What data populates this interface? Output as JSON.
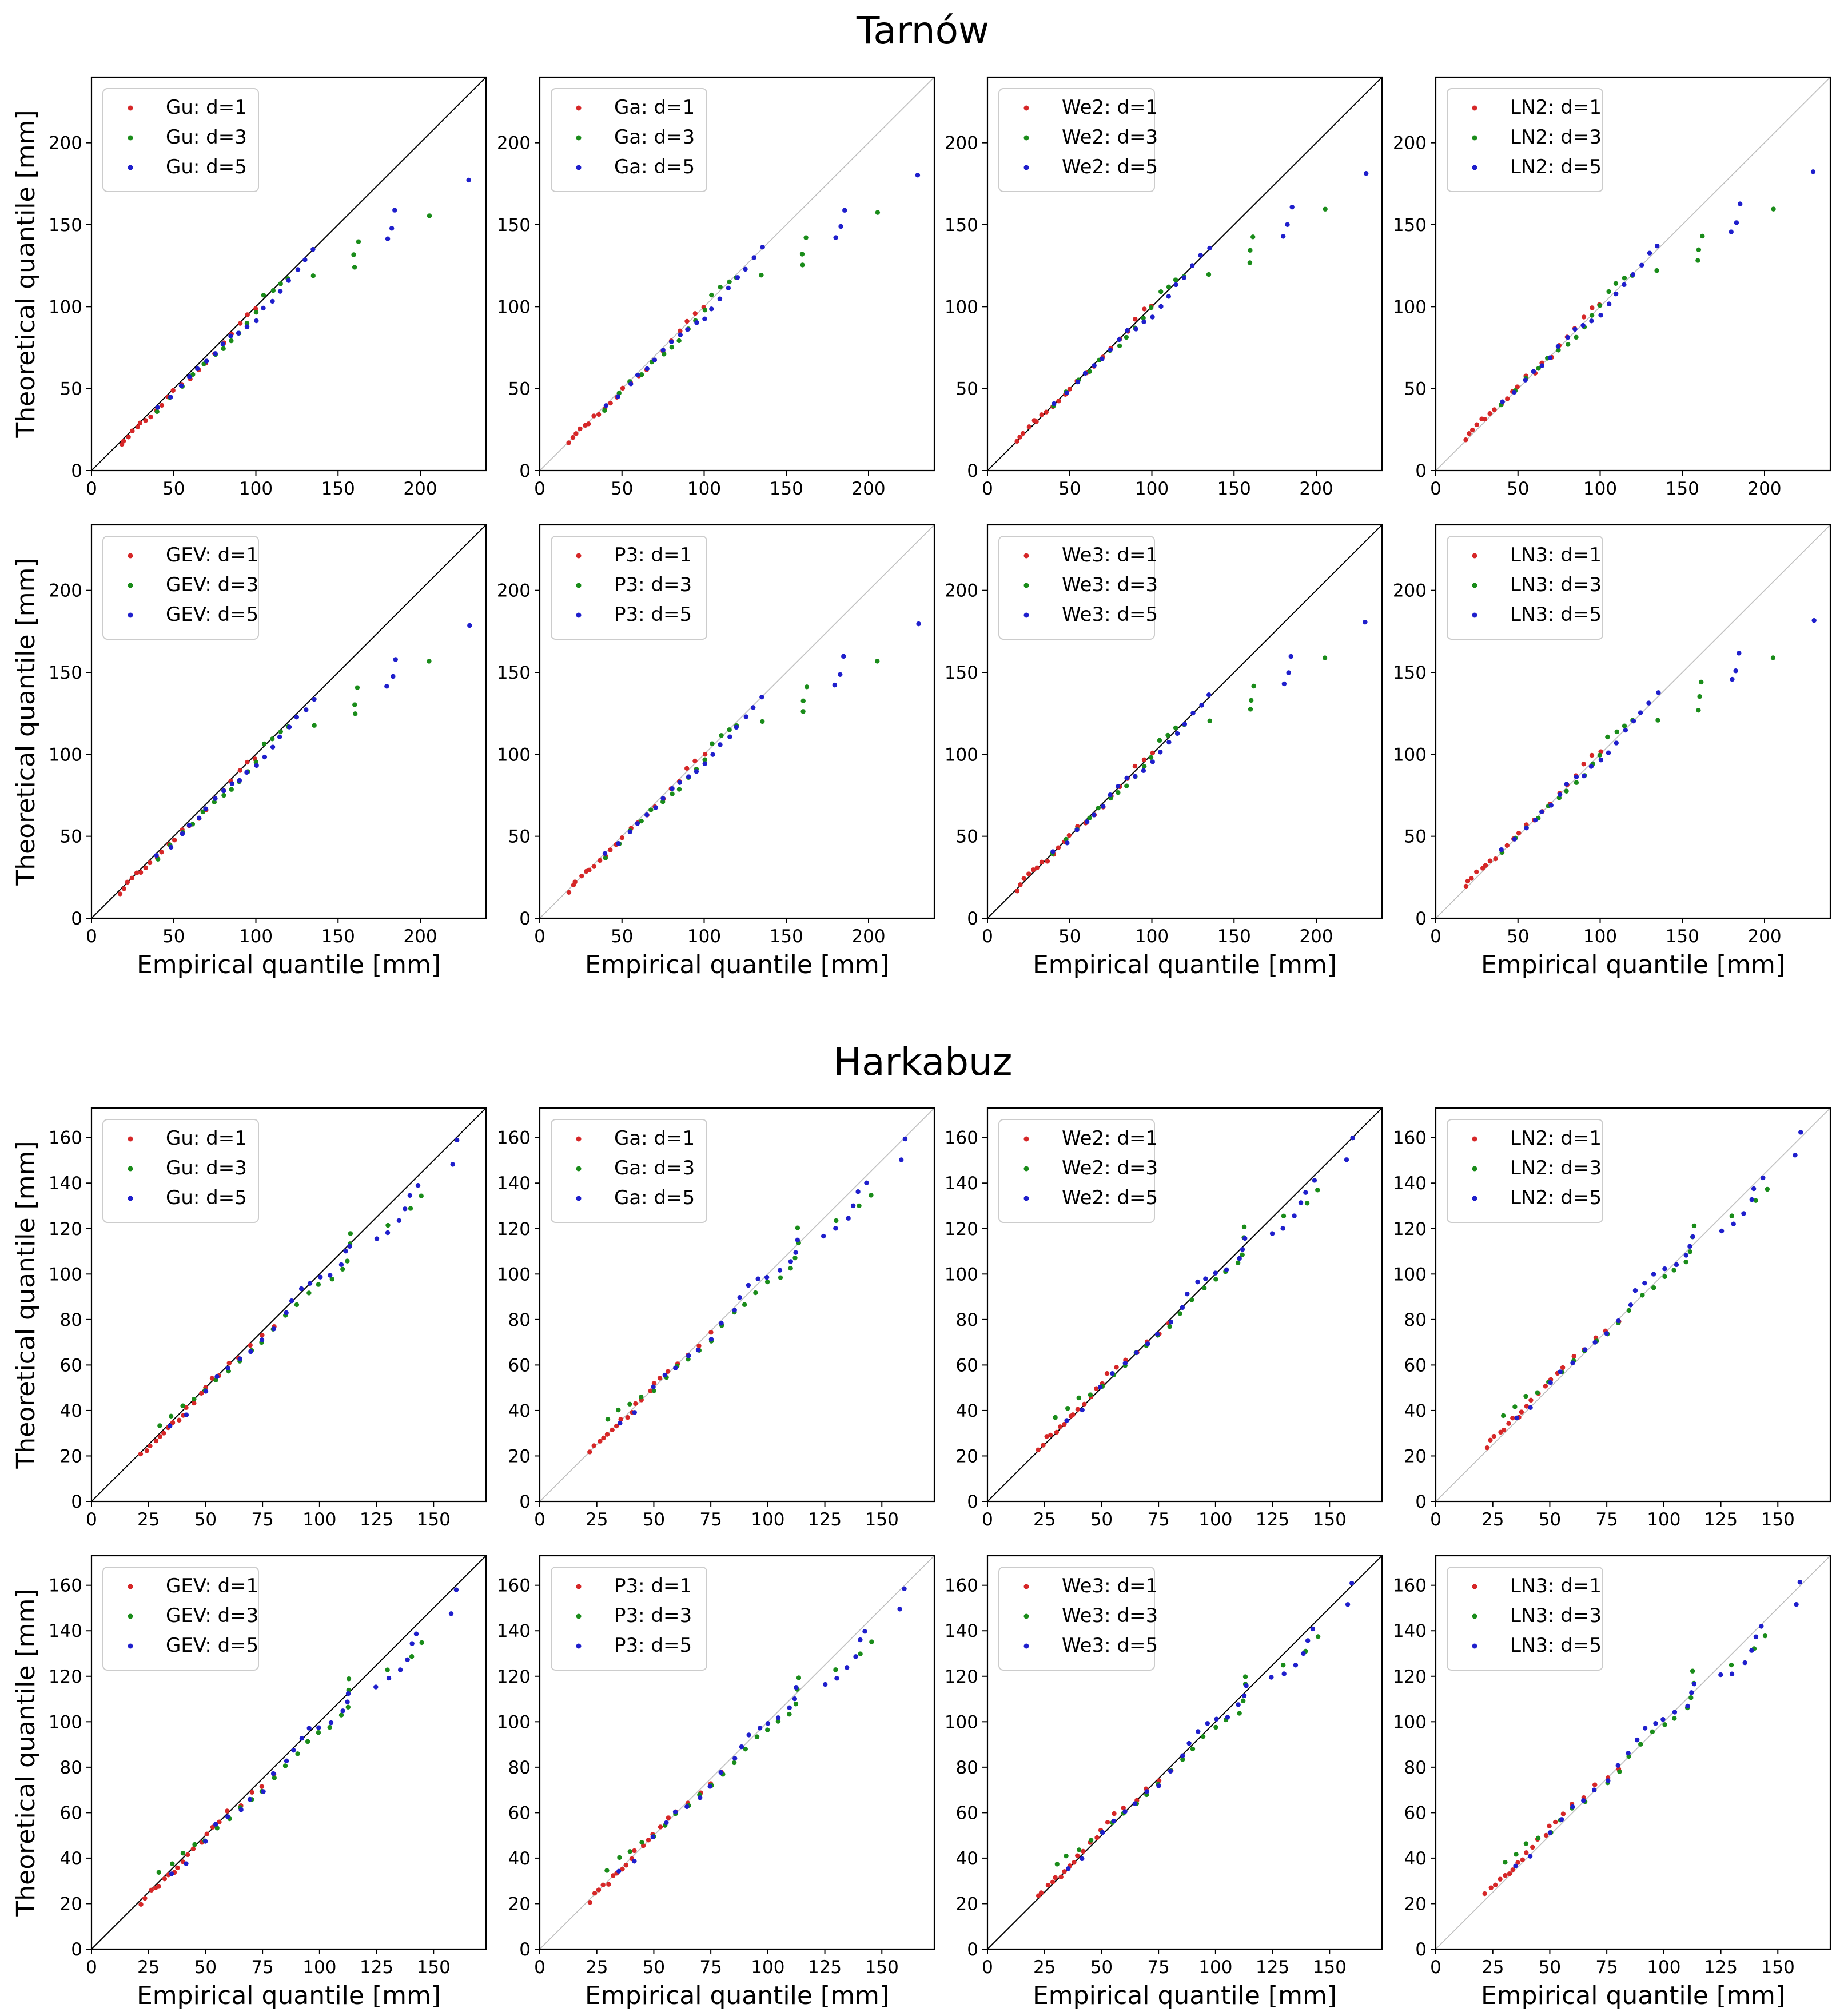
{
  "figure": {
    "xlabel": "Empirical quantile [mm]",
    "ylabel": "Theoretical quantile [mm]",
    "colors": {
      "d1": "#d62728",
      "d3": "#1a8c1a",
      "d5": "#1f1fcc"
    }
  },
  "sections": [
    {
      "title": "Tarnów",
      "xlim": [
        0,
        240
      ],
      "ylim": [
        0,
        240
      ],
      "xticks": [
        0,
        50,
        100,
        150,
        200
      ],
      "yticks": [
        0,
        50,
        100,
        150,
        200
      ],
      "chart_data": [
        {
          "type": "scatter",
          "title": "Gu",
          "legend": [
            "Gu: d=1",
            "Gu: d=3",
            "Gu: d=5"
          ],
          "diagonal": "dark"
        },
        {
          "type": "scatter",
          "title": "Ga",
          "legend": [
            "Ga: d=1",
            "Ga: d=3",
            "Ga: d=5"
          ],
          "diagonal": "light"
        },
        {
          "type": "scatter",
          "title": "We2",
          "legend": [
            "We2: d=1",
            "We2: d=3",
            "We2: d=5"
          ],
          "diagonal": "dark"
        },
        {
          "type": "scatter",
          "title": "LN2",
          "legend": [
            "LN2: d=1",
            "LN2: d=3",
            "LN2: d=5"
          ],
          "diagonal": "light"
        },
        {
          "type": "scatter",
          "title": "GEV",
          "legend": [
            "GEV: d=1",
            "GEV: d=3",
            "GEV: d=5"
          ],
          "diagonal": "dark"
        },
        {
          "type": "scatter",
          "title": "P3",
          "legend": [
            "P3: d=1",
            "P3: d=3",
            "P3: d=5"
          ],
          "diagonal": "light"
        },
        {
          "type": "scatter",
          "title": "We3",
          "legend": [
            "We3: d=1",
            "We3: d=3",
            "We3: d=5"
          ],
          "diagonal": "dark"
        },
        {
          "type": "scatter",
          "title": "LN3",
          "legend": [
            "LN3: d=1",
            "LN3: d=3",
            "LN3: d=5"
          ],
          "diagonal": "light"
        }
      ],
      "series_points": {
        "d1": [
          [
            18,
            17
          ],
          [
            20,
            20
          ],
          [
            22,
            23
          ],
          [
            25,
            26
          ],
          [
            28,
            29
          ],
          [
            30,
            30
          ],
          [
            33,
            33
          ],
          [
            36,
            35
          ],
          [
            40,
            38
          ],
          [
            43,
            42
          ],
          [
            47,
            46
          ],
          [
            50,
            50
          ],
          [
            55,
            55
          ],
          [
            60,
            58
          ],
          [
            65,
            63
          ],
          [
            70,
            68
          ],
          [
            75,
            74
          ],
          [
            80,
            80
          ],
          [
            85,
            85
          ],
          [
            90,
            92
          ],
          [
            95,
            97
          ],
          [
            100,
            100
          ]
        ],
        "d3": [
          [
            40,
            38
          ],
          [
            48,
            47
          ],
          [
            55,
            54
          ],
          [
            62,
            60
          ],
          [
            68,
            66
          ],
          [
            75,
            72
          ],
          [
            80,
            76
          ],
          [
            85,
            80
          ],
          [
            90,
            86
          ],
          [
            95,
            92
          ],
          [
            100,
            98
          ],
          [
            105,
            108
          ],
          [
            110,
            112
          ],
          [
            115,
            116
          ],
          [
            120,
            118
          ],
          [
            135,
            120
          ],
          [
            160,
            126
          ],
          [
            160,
            133
          ],
          [
            162,
            142
          ],
          [
            205,
            158
          ]
        ],
        "d5": [
          [
            40,
            40
          ],
          [
            48,
            46
          ],
          [
            55,
            53
          ],
          [
            60,
            58
          ],
          [
            65,
            63
          ],
          [
            70,
            68
          ],
          [
            75,
            74
          ],
          [
            80,
            80
          ],
          [
            85,
            84
          ],
          [
            90,
            86
          ],
          [
            95,
            90
          ],
          [
            100,
            94
          ],
          [
            105,
            100
          ],
          [
            110,
            106
          ],
          [
            115,
            112
          ],
          [
            120,
            118
          ],
          [
            125,
            124
          ],
          [
            130,
            130
          ],
          [
            135,
            136
          ],
          [
            180,
            143
          ],
          [
            183,
            150
          ],
          [
            185,
            160
          ],
          [
            230,
            180
          ]
        ]
      }
    },
    {
      "title": "Harkabuz",
      "xlim": [
        0,
        173
      ],
      "ylim": [
        0,
        173
      ],
      "xticks": [
        0,
        25,
        50,
        75,
        100,
        125,
        150
      ],
      "yticks": [
        0,
        20,
        40,
        60,
        80,
        100,
        120,
        140,
        160
      ],
      "chart_data": [
        {
          "type": "scatter",
          "title": "Gu",
          "legend": [
            "Gu: d=1",
            "Gu: d=3",
            "Gu: d=5"
          ],
          "diagonal": "dark"
        },
        {
          "type": "scatter",
          "title": "Ga",
          "legend": [
            "Ga: d=1",
            "Ga: d=3",
            "Ga: d=5"
          ],
          "diagonal": "light"
        },
        {
          "type": "scatter",
          "title": "We2",
          "legend": [
            "We2: d=1",
            "We2: d=3",
            "We2: d=5"
          ],
          "diagonal": "dark"
        },
        {
          "type": "scatter",
          "title": "LN2",
          "legend": [
            "LN2: d=1",
            "LN2: d=3",
            "LN2: d=5"
          ],
          "diagonal": "light"
        },
        {
          "type": "scatter",
          "title": "GEV",
          "legend": [
            "GEV: d=1",
            "GEV: d=3",
            "GEV: d=5"
          ],
          "diagonal": "dark"
        },
        {
          "type": "scatter",
          "title": "P3",
          "legend": [
            "P3: d=1",
            "P3: d=3",
            "P3: d=5"
          ],
          "diagonal": "light"
        },
        {
          "type": "scatter",
          "title": "We3",
          "legend": [
            "We3: d=1",
            "We3: d=3",
            "We3: d=5"
          ],
          "diagonal": "dark"
        },
        {
          "type": "scatter",
          "title": "LN3",
          "legend": [
            "LN3: d=1",
            "LN3: d=3",
            "LN3: d=5"
          ],
          "diagonal": "light"
        }
      ],
      "series_points": {
        "d1": [
          [
            22,
            22
          ],
          [
            24,
            25
          ],
          [
            26,
            27
          ],
          [
            28,
            29
          ],
          [
            30,
            30
          ],
          [
            32,
            32
          ],
          [
            34,
            34
          ],
          [
            36,
            36
          ],
          [
            38,
            38
          ],
          [
            40,
            40
          ],
          [
            42,
            43
          ],
          [
            45,
            46
          ],
          [
            48,
            49
          ],
          [
            50,
            52
          ],
          [
            53,
            55
          ],
          [
            56,
            58
          ],
          [
            60,
            62
          ],
          [
            65,
            65
          ],
          [
            70,
            70
          ],
          [
            75,
            74
          ],
          [
            80,
            78
          ]
        ],
        "d3": [
          [
            30,
            36
          ],
          [
            35,
            40
          ],
          [
            40,
            44
          ],
          [
            45,
            47
          ],
          [
            50,
            50
          ],
          [
            55,
            55
          ],
          [
            60,
            60
          ],
          [
            65,
            64
          ],
          [
            70,
            68
          ],
          [
            75,
            72
          ],
          [
            80,
            77
          ],
          [
            85,
            83
          ],
          [
            90,
            88
          ],
          [
            95,
            93
          ],
          [
            100,
            97
          ],
          [
            105,
            100
          ],
          [
            110,
            104
          ],
          [
            112,
            108
          ],
          [
            113,
            115
          ],
          [
            113,
            120
          ],
          [
            130,
            124
          ],
          [
            140,
            130
          ],
          [
            145,
            136
          ]
        ],
        "d5": [
          [
            35,
            35
          ],
          [
            42,
            40
          ],
          [
            50,
            50
          ],
          [
            55,
            56
          ],
          [
            60,
            60
          ],
          [
            65,
            64
          ],
          [
            70,
            68
          ],
          [
            75,
            72
          ],
          [
            80,
            78
          ],
          [
            85,
            85
          ],
          [
            88,
            90
          ],
          [
            92,
            95
          ],
          [
            96,
            98
          ],
          [
            100,
            100
          ],
          [
            105,
            102
          ],
          [
            110,
            106
          ],
          [
            112,
            111
          ],
          [
            113,
            115
          ],
          [
            125,
            118
          ],
          [
            130,
            120
          ],
          [
            135,
            125
          ],
          [
            138,
            130
          ],
          [
            140,
            136
          ],
          [
            143,
            141
          ],
          [
            158,
            150
          ],
          [
            160,
            160
          ]
        ]
      }
    }
  ]
}
